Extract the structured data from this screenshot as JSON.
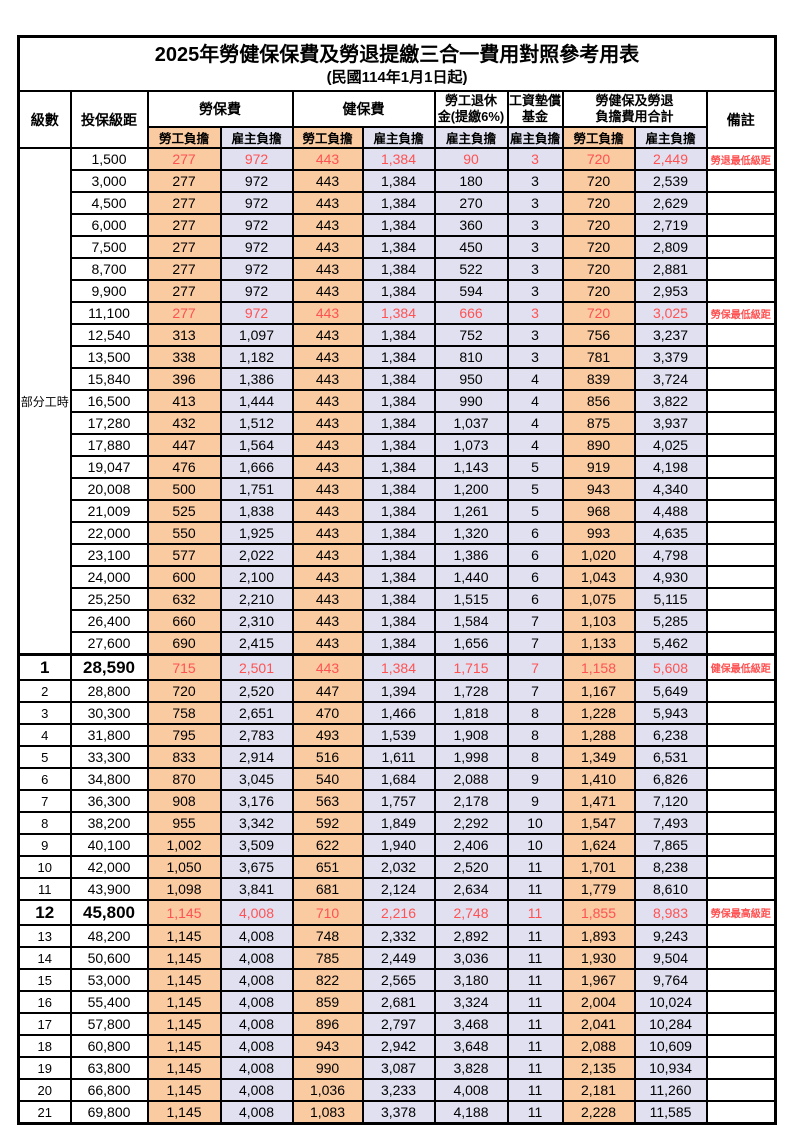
{
  "title": "2025年勞健保保費及勞退提繳三合一費用對照參考用表",
  "subtitle": "(民國114年1月1日起)",
  "colors": {
    "labor_bg": "#FACAA0",
    "employer_bg": "#E0E0F1",
    "highlight_red": "#FF5252",
    "border": "#000000"
  },
  "table": {
    "headers": {
      "level": "級數",
      "salary": "投保級距",
      "labor_insurance": "勞保費",
      "health_insurance": "健保費",
      "pension_line1": "勞工退休",
      "pension_line2": "金(提繳6%)",
      "wage_fund_line1": "工資墊償",
      "wage_fund_line2": "基金",
      "total_line1": "勞健保及勞退",
      "total_line2": "負擔費用合計",
      "remark": "備註",
      "labor_share": "勞工負擔",
      "employer_share": "雇主負擔"
    },
    "group_label": "部分工時",
    "group_rowspan": 23,
    "rows": [
      {
        "level": "",
        "salary": "1,500",
        "values": [
          "277",
          "972",
          "443",
          "1,384",
          "90",
          "3",
          "720",
          "2,449"
        ],
        "remark": "勞退最低級距",
        "red": true
      },
      {
        "level": "",
        "salary": "3,000",
        "values": [
          "277",
          "972",
          "443",
          "1,384",
          "180",
          "3",
          "720",
          "2,539"
        ]
      },
      {
        "level": "",
        "salary": "4,500",
        "values": [
          "277",
          "972",
          "443",
          "1,384",
          "270",
          "3",
          "720",
          "2,629"
        ]
      },
      {
        "level": "",
        "salary": "6,000",
        "values": [
          "277",
          "972",
          "443",
          "1,384",
          "360",
          "3",
          "720",
          "2,719"
        ]
      },
      {
        "level": "",
        "salary": "7,500",
        "values": [
          "277",
          "972",
          "443",
          "1,384",
          "450",
          "3",
          "720",
          "2,809"
        ]
      },
      {
        "level": "",
        "salary": "8,700",
        "values": [
          "277",
          "972",
          "443",
          "1,384",
          "522",
          "3",
          "720",
          "2,881"
        ]
      },
      {
        "level": "",
        "salary": "9,900",
        "values": [
          "277",
          "972",
          "443",
          "1,384",
          "594",
          "3",
          "720",
          "2,953"
        ]
      },
      {
        "level": "",
        "salary": "11,100",
        "values": [
          "277",
          "972",
          "443",
          "1,384",
          "666",
          "3",
          "720",
          "3,025"
        ],
        "remark": "勞保最低級距",
        "red": true
      },
      {
        "level": "",
        "salary": "12,540",
        "values": [
          "313",
          "1,097",
          "443",
          "1,384",
          "752",
          "3",
          "756",
          "3,237"
        ]
      },
      {
        "level": "",
        "salary": "13,500",
        "values": [
          "338",
          "1,182",
          "443",
          "1,384",
          "810",
          "3",
          "781",
          "3,379"
        ]
      },
      {
        "level": "",
        "salary": "15,840",
        "values": [
          "396",
          "1,386",
          "443",
          "1,384",
          "950",
          "4",
          "839",
          "3,724"
        ]
      },
      {
        "level": "",
        "salary": "16,500",
        "values": [
          "413",
          "1,444",
          "443",
          "1,384",
          "990",
          "4",
          "856",
          "3,822"
        ]
      },
      {
        "level": "",
        "salary": "17,280",
        "values": [
          "432",
          "1,512",
          "443",
          "1,384",
          "1,037",
          "4",
          "875",
          "3,937"
        ]
      },
      {
        "level": "",
        "salary": "17,880",
        "values": [
          "447",
          "1,564",
          "443",
          "1,384",
          "1,073",
          "4",
          "890",
          "4,025"
        ]
      },
      {
        "level": "",
        "salary": "19,047",
        "values": [
          "476",
          "1,666",
          "443",
          "1,384",
          "1,143",
          "5",
          "919",
          "4,198"
        ]
      },
      {
        "level": "",
        "salary": "20,008",
        "values": [
          "500",
          "1,751",
          "443",
          "1,384",
          "1,200",
          "5",
          "943",
          "4,340"
        ]
      },
      {
        "level": "",
        "salary": "21,009",
        "values": [
          "525",
          "1,838",
          "443",
          "1,384",
          "1,261",
          "5",
          "968",
          "4,488"
        ]
      },
      {
        "level": "",
        "salary": "22,000",
        "values": [
          "550",
          "1,925",
          "443",
          "1,384",
          "1,320",
          "6",
          "993",
          "4,635"
        ]
      },
      {
        "level": "",
        "salary": "23,100",
        "values": [
          "577",
          "2,022",
          "443",
          "1,384",
          "1,386",
          "6",
          "1,020",
          "4,798"
        ]
      },
      {
        "level": "",
        "salary": "24,000",
        "values": [
          "600",
          "2,100",
          "443",
          "1,384",
          "1,440",
          "6",
          "1,043",
          "4,930"
        ]
      },
      {
        "level": "",
        "salary": "25,250",
        "values": [
          "632",
          "2,210",
          "443",
          "1,384",
          "1,515",
          "6",
          "1,075",
          "5,115"
        ]
      },
      {
        "level": "",
        "salary": "26,400",
        "values": [
          "660",
          "2,310",
          "443",
          "1,384",
          "1,584",
          "7",
          "1,103",
          "5,285"
        ]
      },
      {
        "level": "",
        "salary": "27,600",
        "values": [
          "690",
          "2,415",
          "443",
          "1,384",
          "1,656",
          "7",
          "1,133",
          "5,462"
        ]
      },
      {
        "level": "1",
        "salary": "28,590",
        "values": [
          "715",
          "2,501",
          "443",
          "1,384",
          "1,715",
          "7",
          "1,158",
          "5,608"
        ],
        "remark": "健保最低級距",
        "red": true,
        "big": true,
        "thick_top": true
      },
      {
        "level": "2",
        "salary": "28,800",
        "values": [
          "720",
          "2,520",
          "447",
          "1,394",
          "1,728",
          "7",
          "1,167",
          "5,649"
        ]
      },
      {
        "level": "3",
        "salary": "30,300",
        "values": [
          "758",
          "2,651",
          "470",
          "1,466",
          "1,818",
          "8",
          "1,228",
          "5,943"
        ]
      },
      {
        "level": "4",
        "salary": "31,800",
        "values": [
          "795",
          "2,783",
          "493",
          "1,539",
          "1,908",
          "8",
          "1,288",
          "6,238"
        ]
      },
      {
        "level": "5",
        "salary": "33,300",
        "values": [
          "833",
          "2,914",
          "516",
          "1,611",
          "1,998",
          "8",
          "1,349",
          "6,531"
        ]
      },
      {
        "level": "6",
        "salary": "34,800",
        "values": [
          "870",
          "3,045",
          "540",
          "1,684",
          "2,088",
          "9",
          "1,410",
          "6,826"
        ]
      },
      {
        "level": "7",
        "salary": "36,300",
        "values": [
          "908",
          "3,176",
          "563",
          "1,757",
          "2,178",
          "9",
          "1,471",
          "7,120"
        ]
      },
      {
        "level": "8",
        "salary": "38,200",
        "values": [
          "955",
          "3,342",
          "592",
          "1,849",
          "2,292",
          "10",
          "1,547",
          "7,493"
        ]
      },
      {
        "level": "9",
        "salary": "40,100",
        "values": [
          "1,002",
          "3,509",
          "622",
          "1,940",
          "2,406",
          "10",
          "1,624",
          "7,865"
        ]
      },
      {
        "level": "10",
        "salary": "42,000",
        "values": [
          "1,050",
          "3,675",
          "651",
          "2,032",
          "2,520",
          "11",
          "1,701",
          "8,238"
        ]
      },
      {
        "level": "11",
        "salary": "43,900",
        "values": [
          "1,098",
          "3,841",
          "681",
          "2,124",
          "2,634",
          "11",
          "1,779",
          "8,610"
        ]
      },
      {
        "level": "12",
        "salary": "45,800",
        "values": [
          "1,145",
          "4,008",
          "710",
          "2,216",
          "2,748",
          "11",
          "1,855",
          "8,983"
        ],
        "remark": "勞保最高級距",
        "red": true,
        "big": true
      },
      {
        "level": "13",
        "salary": "48,200",
        "values": [
          "1,145",
          "4,008",
          "748",
          "2,332",
          "2,892",
          "11",
          "1,893",
          "9,243"
        ]
      },
      {
        "level": "14",
        "salary": "50,600",
        "values": [
          "1,145",
          "4,008",
          "785",
          "2,449",
          "3,036",
          "11",
          "1,930",
          "9,504"
        ]
      },
      {
        "level": "15",
        "salary": "53,000",
        "values": [
          "1,145",
          "4,008",
          "822",
          "2,565",
          "3,180",
          "11",
          "1,967",
          "9,764"
        ]
      },
      {
        "level": "16",
        "salary": "55,400",
        "values": [
          "1,145",
          "4,008",
          "859",
          "2,681",
          "3,324",
          "11",
          "2,004",
          "10,024"
        ]
      },
      {
        "level": "17",
        "salary": "57,800",
        "values": [
          "1,145",
          "4,008",
          "896",
          "2,797",
          "3,468",
          "11",
          "2,041",
          "10,284"
        ]
      },
      {
        "level": "18",
        "salary": "60,800",
        "values": [
          "1,145",
          "4,008",
          "943",
          "2,942",
          "3,648",
          "11",
          "2,088",
          "10,609"
        ]
      },
      {
        "level": "19",
        "salary": "63,800",
        "values": [
          "1,145",
          "4,008",
          "990",
          "3,087",
          "3,828",
          "11",
          "2,135",
          "10,934"
        ]
      },
      {
        "level": "20",
        "salary": "66,800",
        "values": [
          "1,145",
          "4,008",
          "1,036",
          "3,233",
          "4,008",
          "11",
          "2,181",
          "11,260"
        ]
      },
      {
        "level": "21",
        "salary": "69,800",
        "values": [
          "1,145",
          "4,008",
          "1,083",
          "3,378",
          "4,188",
          "11",
          "2,228",
          "11,585"
        ]
      }
    ]
  }
}
